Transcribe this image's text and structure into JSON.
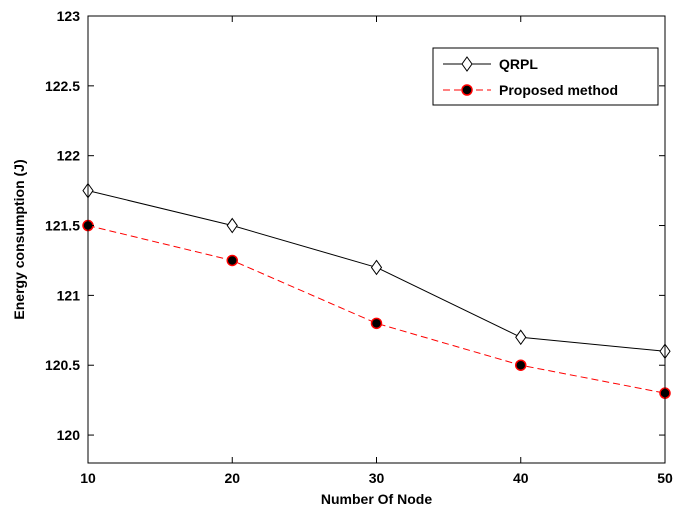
{
  "chart_data": {
    "type": "line",
    "title": "",
    "xlabel": "Number Of Node",
    "ylabel": "Energy consumption (J)",
    "x": [
      10,
      20,
      30,
      40,
      50
    ],
    "xlim": [
      10,
      50
    ],
    "ylim": [
      119.8,
      123
    ],
    "xticks": [
      10,
      20,
      30,
      40,
      50
    ],
    "xtick_labels": [
      "10",
      "20",
      "30",
      "40",
      "50"
    ],
    "yticks": [
      120,
      120.5,
      121,
      121.5,
      122,
      122.5,
      123
    ],
    "ytick_labels": [
      "120",
      "120.5",
      "121",
      "121.5",
      "122",
      "122.5",
      "123"
    ],
    "grid": false,
    "legend_position": "top-right",
    "series": [
      {
        "name": "QRPL",
        "values": [
          121.75,
          121.5,
          121.2,
          120.7,
          120.6
        ],
        "color": "#000000",
        "line_style": "solid",
        "marker": "diamond",
        "marker_fill": "#ffffff"
      },
      {
        "name": "Proposed method",
        "values": [
          121.5,
          121.25,
          120.8,
          120.5,
          120.3
        ],
        "color": "#ff0000",
        "line_style": "dashed",
        "marker": "circle",
        "marker_fill": "#000000"
      }
    ]
  }
}
